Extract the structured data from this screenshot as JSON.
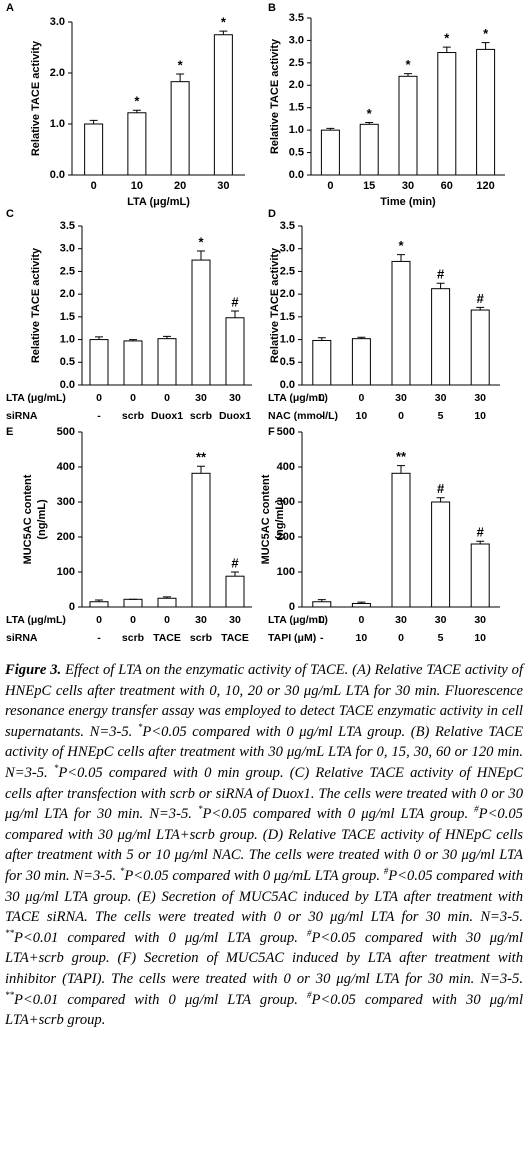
{
  "chart_data": [
    {
      "type": "bar",
      "panel": "A",
      "ylabel": [
        "Relative TACE activity"
      ],
      "xlabel": "LTA (μg/mL)",
      "categories": [
        "0",
        "10",
        "20",
        "30"
      ],
      "values": [
        1.0,
        1.22,
        1.83,
        2.75
      ],
      "errors": [
        0.07,
        0.05,
        0.15,
        0.07
      ],
      "annotations": [
        null,
        "*",
        "*",
        "*"
      ],
      "color": "#ffffff",
      "ylim": [
        0,
        3.0
      ],
      "yticks": [
        {
          "value": 0,
          "label": "0.0"
        },
        {
          "value": 1,
          "label": "1.0"
        },
        {
          "value": 2,
          "label": "2.0"
        },
        {
          "value": 3,
          "label": "3.0"
        }
      ]
    },
    {
      "type": "bar",
      "panel": "B",
      "ylabel": [
        "Relative TACE activity"
      ],
      "xlabel": "Time (min)",
      "categories": [
        "0",
        "15",
        "30",
        "60",
        "120"
      ],
      "values": [
        1.0,
        1.13,
        2.2,
        2.73,
        2.8
      ],
      "errors": [
        0.04,
        0.04,
        0.06,
        0.12,
        0.15
      ],
      "annotations": [
        null,
        "*",
        "*",
        "*",
        "*"
      ],
      "color": "#ffffff",
      "ylim": [
        0,
        3.5
      ],
      "yticks": [
        {
          "value": 0,
          "label": "0.0"
        },
        {
          "value": 0.5,
          "label": "0.5"
        },
        {
          "value": 1,
          "label": "1.0"
        },
        {
          "value": 1.5,
          "label": "1.5"
        },
        {
          "value": 2,
          "label": "2.0"
        },
        {
          "value": 2.5,
          "label": "2.5"
        },
        {
          "value": 3,
          "label": "3.0"
        },
        {
          "value": 3.5,
          "label": "3.5"
        }
      ]
    },
    {
      "type": "bar",
      "panel": "C",
      "ylabel": [
        "Relative TACE activity"
      ],
      "category_rows": [
        {
          "label": "LTA (μg/mL)",
          "values": [
            "0",
            "0",
            "0",
            "30",
            "30"
          ]
        },
        {
          "label": "siRNA",
          "values": [
            "-",
            "scrb",
            "Duox1",
            "scrb",
            "Duox1"
          ]
        }
      ],
      "values": [
        1.0,
        0.97,
        1.02,
        2.75,
        1.48
      ],
      "errors": [
        0.06,
        0.03,
        0.05,
        0.2,
        0.15
      ],
      "annotations": [
        null,
        null,
        null,
        "*",
        "#"
      ],
      "color": "#ffffff",
      "ylim": [
        0,
        3.5
      ],
      "yticks": [
        {
          "value": 0,
          "label": "0.0"
        },
        {
          "value": 0.5,
          "label": "0.5"
        },
        {
          "value": 1,
          "label": "1.0"
        },
        {
          "value": 1.5,
          "label": "1.5"
        },
        {
          "value": 2,
          "label": "2.0"
        },
        {
          "value": 2.5,
          "label": "2.5"
        },
        {
          "value": 3,
          "label": "3.0"
        },
        {
          "value": 3.5,
          "label": "3.5"
        }
      ]
    },
    {
      "type": "bar",
      "panel": "D",
      "ylabel": [
        "Relative TACE activity"
      ],
      "category_rows": [
        {
          "label": "LTA (μg/mL)",
          "values": [
            "0",
            "0",
            "30",
            "30",
            "30"
          ]
        },
        {
          "label": "NAC (mmol/L)",
          "values": [
            "-",
            "10",
            "0",
            "5",
            "10"
          ]
        }
      ],
      "values": [
        0.98,
        1.02,
        2.72,
        2.12,
        1.65
      ],
      "errors": [
        0.06,
        0.03,
        0.15,
        0.12,
        0.06
      ],
      "annotations": [
        null,
        null,
        "*",
        "#",
        "#"
      ],
      "color": "#ffffff",
      "ylim": [
        0,
        3.5
      ],
      "yticks": [
        {
          "value": 0,
          "label": "0.0"
        },
        {
          "value": 0.5,
          "label": "0.5"
        },
        {
          "value": 1,
          "label": "1.0"
        },
        {
          "value": 1.5,
          "label": "1.5"
        },
        {
          "value": 2,
          "label": "2.0"
        },
        {
          "value": 2.5,
          "label": "2.5"
        },
        {
          "value": 3,
          "label": "3.0"
        },
        {
          "value": 3.5,
          "label": "3.5"
        }
      ]
    },
    {
      "type": "bar",
      "panel": "E",
      "ylabel": [
        "MUC5AC content",
        "(ng/mL)"
      ],
      "category_rows": [
        {
          "label": "LTA (μg/mL)",
          "values": [
            "0",
            "0",
            "0",
            "30",
            "30"
          ]
        },
        {
          "label": "siRNA",
          "values": [
            "-",
            "scrb",
            "TACE",
            "scrb",
            "TACE"
          ]
        }
      ],
      "values": [
        15,
        22,
        25,
        382,
        88
      ],
      "errors": [
        5,
        0,
        4,
        20,
        12
      ],
      "annotations": [
        null,
        null,
        null,
        "**",
        "#"
      ],
      "color": "#ffffff",
      "ylim": [
        0,
        500
      ],
      "yticks": [
        0,
        100,
        200,
        300,
        400,
        500
      ]
    },
    {
      "type": "bar",
      "panel": "F",
      "ylabel": [
        "MUC5AC content",
        "(ng/mL)"
      ],
      "category_rows": [
        {
          "label": "LTA (μg/mL)",
          "values": [
            "0",
            "0",
            "30",
            "30",
            "30"
          ]
        },
        {
          "label": "TAPI (μM)",
          "values": [
            "-",
            "10",
            "0",
            "5",
            "10"
          ]
        }
      ],
      "values": [
        15,
        10,
        382,
        300,
        180
      ],
      "errors": [
        6,
        4,
        22,
        12,
        8
      ],
      "annotations": [
        null,
        null,
        "**",
        "#",
        "#"
      ],
      "color": "#ffffff",
      "ylim": [
        0,
        500
      ],
      "yticks": [
        0,
        100,
        200,
        300,
        400,
        500
      ]
    }
  ],
  "caption": {
    "label": "Figure 3.",
    "parts": [
      {
        "text": " Effect of LTA on the enzymatic activity of TACE. (A) Relative TACE activity of HNEpC cells after treatment with 0, 10, 20 or 30 μg/mL LTA for 30 min. Fluorescence resonance energy transfer assay was employed to detect TACE enzymatic activity in cell supernatants. N=3-5. "
      },
      {
        "sup": "*"
      },
      {
        "text": "P<0.05 compared with 0 μg/ml LTA group. (B) Relative TACE activity of HNEpC cells after treatment with 30 μg/mL LTA for 0, 15, 30, 60 or 120 min. N=3-5. "
      },
      {
        "sup": "*"
      },
      {
        "text": "P<0.05 compared with 0 min group. (C) Relative TACE activity of HNEpC cells after transfection with scrb or siRNA of Duox1. The cells were treated with 0 or 30 μg/ml LTA for 30 min. N=3-5. "
      },
      {
        "sup": "*"
      },
      {
        "text": "P<0.05 compared with 0 μg/ml LTA group. "
      },
      {
        "sup": "#"
      },
      {
        "text": "P<0.05 compared with 30 μg/ml LTA+scrb group. (D) Relative TACE activity of HNEpC cells after treatment with 5 or 10 μg/ml NAC. The cells were treated with 0 or 30 μg/ml LTA for 30 min. N=3-5. "
      },
      {
        "sup": "*"
      },
      {
        "text": "P<0.05 compared with 0 μg/mL LTA group. "
      },
      {
        "sup": "#"
      },
      {
        "text": "P<0.05 compared with 30 μg/ml LTA group. (E) Secretion of MUC5AC induced by LTA after treatment with TACE siRNA. The cells were treated with 0 or 30 μg/ml LTA for 30 min. N=3-5. "
      },
      {
        "sup": "**"
      },
      {
        "text": "P<0.01 compared with 0 μg/ml LTA group. "
      },
      {
        "sup": "#"
      },
      {
        "text": "P<0.05 compared with 30 μg/ml LTA+scrb group. (F) Secretion of MUC5AC induced by LTA after treatment with inhibitor (TAPI). The cells were treated with 0 or 30 μg/ml LTA for 30 min. N=3-5. "
      },
      {
        "sup": "**"
      },
      {
        "text": "P<0.01 compared with 0 μg/ml LTA group. "
      },
      {
        "sup": "#"
      },
      {
        "text": "P<0.05 compared with 30 μg/ml LTA+scrb group."
      }
    ]
  }
}
